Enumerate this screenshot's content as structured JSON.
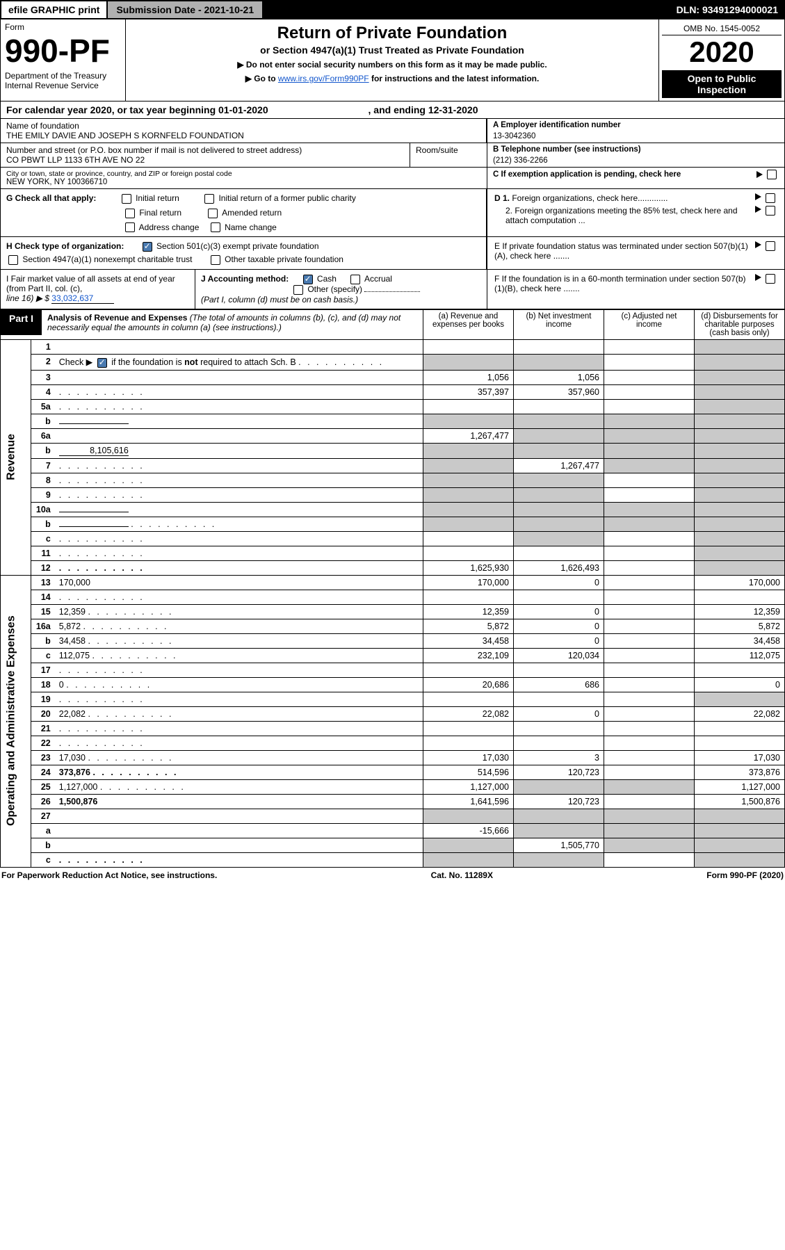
{
  "top": {
    "efile": "efile GRAPHIC print",
    "submission": "Submission Date - 2021-10-21",
    "dln": "DLN: 93491294000021"
  },
  "header": {
    "form_word": "Form",
    "form_num": "990-PF",
    "dept": "Department of the Treasury",
    "irs": "Internal Revenue Service",
    "title": "Return of Private Foundation",
    "subtitle": "or Section 4947(a)(1) Trust Treated as Private Foundation",
    "instr1": "▶ Do not enter social security numbers on this form as it may be made public.",
    "instr2_pre": "▶ Go to ",
    "instr2_link": "www.irs.gov/Form990PF",
    "instr2_post": " for instructions and the latest information.",
    "omb": "OMB No. 1545-0052",
    "year": "2020",
    "open": "Open to Public Inspection"
  },
  "calyear": "For calendar year 2020, or tax year beginning 01-01-2020",
  "calyear_end": ", and ending 12-31-2020",
  "id": {
    "name_lbl": "Name of foundation",
    "name": "THE EMILY DAVIE AND JOSEPH S KORNFELD FOUNDATION",
    "addr_lbl": "Number and street (or P.O. box number if mail is not delivered to street address)",
    "addr": "CO PBWT LLP 1133 6TH AVE NO 22",
    "room_lbl": "Room/suite",
    "city_lbl": "City or town, state or province, country, and ZIP or foreign postal code",
    "city": "NEW YORK, NY  100366710",
    "a_lbl": "A Employer identification number",
    "a": "13-3042360",
    "b_lbl": "B Telephone number (see instructions)",
    "b": "(212) 336-2266",
    "c": "C If exemption application is pending, check here",
    "d1": "D 1. Foreign organizations, check here.............",
    "d2": "2. Foreign organizations meeting the 85% test, check here and attach computation ...",
    "e": "E  If private foundation status was terminated under section 507(b)(1)(A), check here .......",
    "f": "F  If the foundation is in a 60-month termination under section 507(b)(1)(B), check here .......",
    "g": "G Check all that apply:",
    "g_opts": [
      "Initial return",
      "Initial return of a former public charity",
      "Final return",
      "Amended return",
      "Address change",
      "Name change"
    ],
    "h": "H Check type of organization:",
    "h_opts": [
      "Section 501(c)(3) exempt private foundation",
      "Section 4947(a)(1) nonexempt charitable trust",
      "Other taxable private foundation"
    ],
    "i": "I Fair market value of all assets at end of year (from Part II, col. (c),",
    "i2": "line 16) ▶ $",
    "i_val": "33,032,637",
    "j": "J Accounting method:",
    "j_opts": [
      "Cash",
      "Accrual",
      "Other (specify)"
    ],
    "j_note": "(Part I, column (d) must be on cash basis.)"
  },
  "part1": {
    "label": "Part I",
    "title": "Analysis of Revenue and Expenses",
    "note": " (The total of amounts in columns (b), (c), and (d) may not necessarily equal the amounts in column (a) (see instructions).)",
    "cols": {
      "a": "(a) Revenue and expenses per books",
      "b": "(b) Net investment income",
      "c": "(c) Adjusted net income",
      "d": "(d) Disbursements for charitable purposes (cash basis only)"
    }
  },
  "sections": {
    "rev": "Revenue",
    "exp": "Operating and Administrative Expenses"
  },
  "rows": [
    {
      "n": "1",
      "d": "",
      "a": "",
      "b": "",
      "c": "",
      "dshade": true
    },
    {
      "n": "2",
      "d": "",
      "dots": true,
      "a": "",
      "b": "",
      "c": "",
      "dshade": true,
      "bshade": true,
      "ashade": true
    },
    {
      "n": "3",
      "d": "",
      "a": "1,056",
      "b": "1,056",
      "c": "",
      "dshade": true
    },
    {
      "n": "4",
      "d": "",
      "dots": true,
      "a": "357,397",
      "b": "357,960",
      "c": "",
      "dshade": true
    },
    {
      "n": "5a",
      "d": "",
      "dots": true,
      "a": "",
      "b": "",
      "c": "",
      "dshade": true
    },
    {
      "n": "b",
      "d": "",
      "inline": true,
      "a": "",
      "b": "",
      "c": "",
      "ashade": true,
      "bshade": true,
      "cshade": true,
      "dshade": true
    },
    {
      "n": "6a",
      "d": "",
      "a": "1,267,477",
      "b": "",
      "c": "",
      "bshade": true,
      "cshade": true,
      "dshade": true
    },
    {
      "n": "b",
      "d": "",
      "inline": true,
      "ival": "8,105,616",
      "a": "",
      "b": "",
      "c": "",
      "ashade": true,
      "bshade": true,
      "cshade": true,
      "dshade": true
    },
    {
      "n": "7",
      "d": "",
      "dots": true,
      "a": "",
      "b": "1,267,477",
      "c": "",
      "ashade": true,
      "cshade": true,
      "dshade": true
    },
    {
      "n": "8",
      "d": "",
      "dots": true,
      "a": "",
      "b": "",
      "c": "",
      "ashade": true,
      "bshade": true,
      "dshade": true
    },
    {
      "n": "9",
      "d": "",
      "dots": true,
      "a": "",
      "b": "",
      "c": "",
      "ashade": true,
      "bshade": true,
      "dshade": true
    },
    {
      "n": "10a",
      "d": "",
      "inline": true,
      "a": "",
      "b": "",
      "c": "",
      "ashade": true,
      "bshade": true,
      "cshade": true,
      "dshade": true
    },
    {
      "n": "b",
      "d": "",
      "dots": true,
      "inline": true,
      "a": "",
      "b": "",
      "c": "",
      "ashade": true,
      "bshade": true,
      "cshade": true,
      "dshade": true
    },
    {
      "n": "c",
      "d": "",
      "dots": true,
      "a": "",
      "b": "",
      "c": "",
      "bshade": true,
      "dshade": true
    },
    {
      "n": "11",
      "d": "",
      "dots": true,
      "a": "",
      "b": "",
      "c": "",
      "dshade": true
    },
    {
      "n": "12",
      "d": "",
      "dots": true,
      "bold": true,
      "a": "1,625,930",
      "b": "1,626,493",
      "c": "",
      "dshade": true
    },
    {
      "n": "13",
      "d": "170,000",
      "a": "170,000",
      "b": "0",
      "c": ""
    },
    {
      "n": "14",
      "d": "",
      "dots": true,
      "a": "",
      "b": "",
      "c": ""
    },
    {
      "n": "15",
      "d": "12,359",
      "dots": true,
      "a": "12,359",
      "b": "0",
      "c": ""
    },
    {
      "n": "16a",
      "d": "5,872",
      "dots": true,
      "a": "5,872",
      "b": "0",
      "c": ""
    },
    {
      "n": "b",
      "d": "34,458",
      "dots": true,
      "a": "34,458",
      "b": "0",
      "c": ""
    },
    {
      "n": "c",
      "d": "112,075",
      "dots": true,
      "a": "232,109",
      "b": "120,034",
      "c": ""
    },
    {
      "n": "17",
      "d": "",
      "dots": true,
      "a": "",
      "b": "",
      "c": ""
    },
    {
      "n": "18",
      "d": "0",
      "dots": true,
      "a": "20,686",
      "b": "686",
      "c": ""
    },
    {
      "n": "19",
      "d": "",
      "dots": true,
      "a": "",
      "b": "",
      "c": "",
      "dshade": true
    },
    {
      "n": "20",
      "d": "22,082",
      "dots": true,
      "a": "22,082",
      "b": "0",
      "c": ""
    },
    {
      "n": "21",
      "d": "",
      "dots": true,
      "a": "",
      "b": "",
      "c": ""
    },
    {
      "n": "22",
      "d": "",
      "dots": true,
      "a": "",
      "b": "",
      "c": ""
    },
    {
      "n": "23",
      "d": "17,030",
      "dots": true,
      "a": "17,030",
      "b": "3",
      "c": ""
    },
    {
      "n": "24",
      "d": "373,876",
      "dots": true,
      "bold": true,
      "a": "514,596",
      "b": "120,723",
      "c": ""
    },
    {
      "n": "25",
      "d": "1,127,000",
      "dots": true,
      "a": "1,127,000",
      "b": "",
      "c": "",
      "bshade": true,
      "cshade": true
    },
    {
      "n": "26",
      "d": "1,500,876",
      "bold": true,
      "a": "1,641,596",
      "b": "120,723",
      "c": ""
    },
    {
      "n": "27",
      "d": "",
      "a": "",
      "b": "",
      "c": "",
      "ashade": true,
      "bshade": true,
      "cshade": true,
      "dshade": true
    },
    {
      "n": "a",
      "d": "",
      "bold": true,
      "a": "-15,666",
      "b": "",
      "c": "",
      "bshade": true,
      "cshade": true,
      "dshade": true
    },
    {
      "n": "b",
      "d": "",
      "bold": true,
      "a": "",
      "b": "1,505,770",
      "c": "",
      "ashade": true,
      "cshade": true,
      "dshade": true
    },
    {
      "n": "c",
      "d": "",
      "dots": true,
      "bold": true,
      "a": "",
      "b": "",
      "c": "",
      "ashade": true,
      "bshade": true,
      "dshade": true
    }
  ],
  "foot": {
    "left": "For Paperwork Reduction Act Notice, see instructions.",
    "mid": "Cat. No. 11289X",
    "right": "Form 990-PF (2020)"
  }
}
